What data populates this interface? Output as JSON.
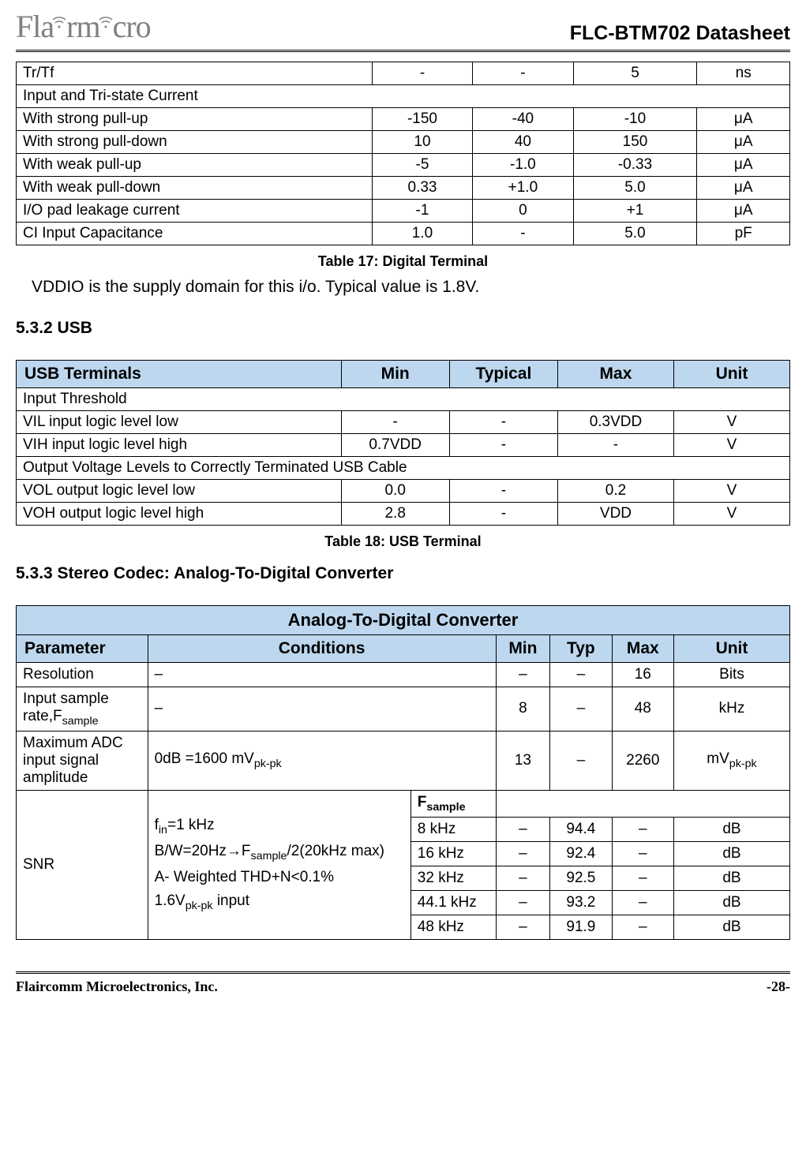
{
  "header": {
    "logo_text_1": "Fla",
    "logo_text_2": "rm",
    "logo_text_3": "cro",
    "doc_title": "FLC-BTM702 Datasheet"
  },
  "table1": {
    "rows": [
      {
        "label": "Tr/Tf",
        "min": "-",
        "typ": "-",
        "max": "5",
        "unit": "ns",
        "span": false
      },
      {
        "label": "Input and Tri-state  Current",
        "span": true
      },
      {
        "label": "With strong pull-up",
        "min": "-150",
        "typ": "-40",
        "max": "-10",
        "unit": "μA",
        "span": false
      },
      {
        "label": "With strong pull-down",
        "min": "10",
        "typ": "40",
        "max": "150",
        "unit": "μA",
        "span": false
      },
      {
        "label": "With weak pull-up",
        "min": "-5",
        "typ": "-1.0",
        "max": "-0.33",
        "unit": "μA",
        "span": false
      },
      {
        "label": "With weak pull-down",
        "min": "0.33",
        "typ": "+1.0",
        "max": "5.0",
        "unit": "μA",
        "span": false
      },
      {
        "label": "I/O pad leakage current",
        "min": "-1",
        "typ": "0",
        "max": "+1",
        "unit": "μA",
        "span": false
      },
      {
        "label": "CI Input Capacitance",
        "min": "1.0",
        "typ": "-",
        "max": "5.0",
        "unit": "pF",
        "span": false
      }
    ],
    "caption": "Table 17: Digital Terminal",
    "note": "VDDIO is the supply domain for this i/o. Typical value is 1.8V."
  },
  "section2": {
    "heading": "5.3.2 USB"
  },
  "table2": {
    "headers": {
      "c0": "USB Terminals",
      "c1": "Min",
      "c2": "Typical",
      "c3": "Max",
      "c4": "Unit"
    },
    "rows": [
      {
        "label": "Input Threshold",
        "span": true
      },
      {
        "label": "VIL input logic level low",
        "min": "-",
        "typ": "-",
        "max": "0.3VDD",
        "unit": "V",
        "span": false
      },
      {
        "label": "VIH input logic level high",
        "min": "0.7VDD",
        "typ": "-",
        "max": "-",
        "unit": "V",
        "span": false
      },
      {
        "label": "Output Voltage Levels to Correctly Terminated USB Cable",
        "span": true
      },
      {
        "label": "VOL output logic level low",
        "min": "0.0",
        "typ": "-",
        "max": "0.2",
        "unit": "V",
        "span": false
      },
      {
        "label": "VOH output logic level high",
        "min": "2.8",
        "typ": "-",
        "max": "VDD",
        "unit": "V",
        "span": false
      }
    ],
    "caption": "Table 18: USB Terminal"
  },
  "section3": {
    "heading": "5.3.3 Stereo Codec: Analog-To-Digital Converter"
  },
  "table3": {
    "title": "Analog-To-Digital Converter",
    "headers": {
      "c0": "Parameter",
      "c1": "Conditions",
      "c2": "Min",
      "c3": "Typ",
      "c4": "Max",
      "c5": "Unit"
    },
    "row_resolution": {
      "param": "Resolution",
      "cond": "–",
      "min": "–",
      "typ": "–",
      "max": "16",
      "unit": "Bits"
    },
    "row_fsample": {
      "param_pre": "Input sample rate,F",
      "param_sub": "sample",
      "cond": "–",
      "min": "8",
      "typ": "–",
      "max": "48",
      "unit": "kHz"
    },
    "row_maxamp": {
      "param": "Maximum ADC input signal amplitude",
      "cond_pre": "0dB =1600 mV",
      "cond_sub": "pk-pk",
      "min": "13",
      "typ": "–",
      "max": "2260",
      "unit_pre": "mV",
      "unit_sub": "pk-pk"
    },
    "snr": {
      "param": "SNR",
      "cond": {
        "l1_pre": "f",
        "l1_sub": "in",
        "l1_post": "=1 kHz",
        "l2_pre": "B/W=20Hz→F",
        "l2_sub": "sample",
        "l2_post": "/2(20kHz max)",
        "l3": "A- Weighted THD+N<0.1%",
        "l4_pre": "1.6V",
        "l4_sub": "pk-pk",
        "l4_post": " input"
      },
      "fs_header_pre": "F",
      "fs_header_sub": "sample",
      "rows": [
        {
          "fs": "8 kHz",
          "min": "–",
          "typ": "94.4",
          "max": "–",
          "unit": "dB"
        },
        {
          "fs": "16 kHz",
          "min": "–",
          "typ": "92.4",
          "max": "–",
          "unit": "dB"
        },
        {
          "fs": "32 kHz",
          "min": "–",
          "typ": "92.5",
          "max": "–",
          "unit": "dB"
        },
        {
          "fs": "44.1 kHz",
          "min": "–",
          "typ": "93.2",
          "max": "–",
          "unit": "dB"
        },
        {
          "fs": "48 kHz",
          "min": "–",
          "typ": "91.9",
          "max": "–",
          "unit": "dB"
        }
      ]
    }
  },
  "footer": {
    "company": "Flaircomm Microelectronics, Inc.",
    "page": "-28-"
  }
}
